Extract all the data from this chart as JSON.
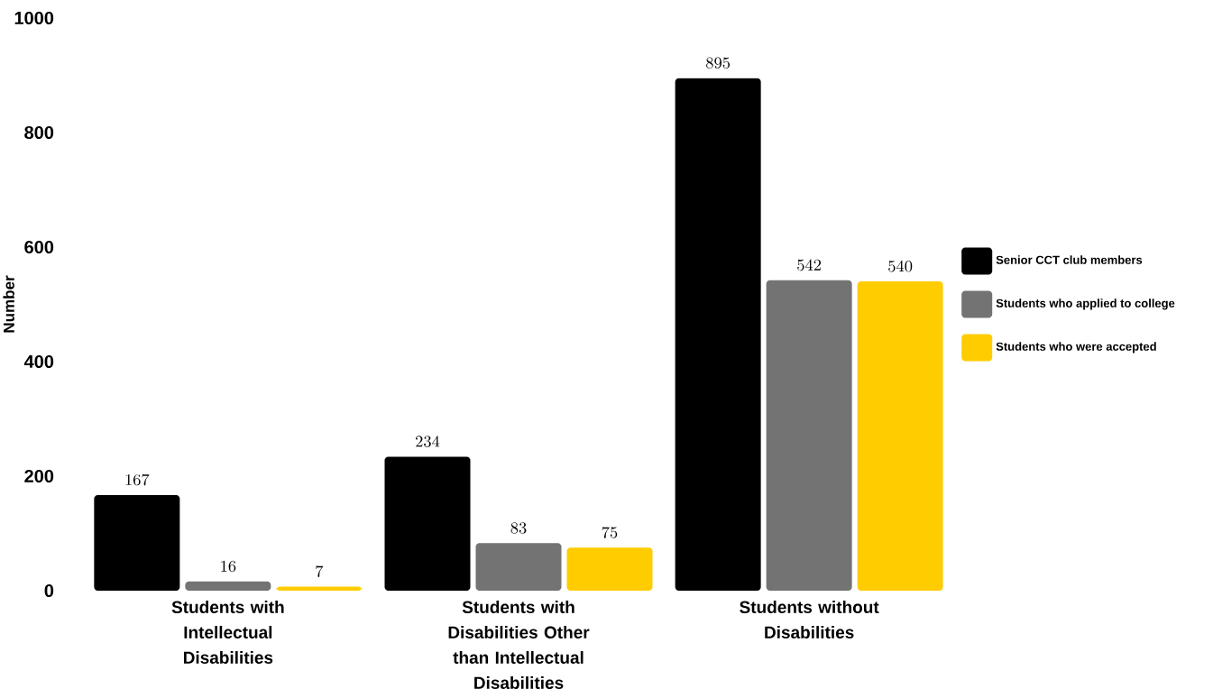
{
  "chart_data": {
    "type": "bar",
    "ylabel": "Number",
    "categories": [
      "Students with Intellectual Disabilities",
      "Students with Disabilities Other than Intellectual Disabilities",
      "Students without Disabilities"
    ],
    "series": [
      {
        "name": "Senior CCT club members",
        "color": "#000000",
        "values": [
          167,
          234,
          895
        ]
      },
      {
        "name": "Students who applied to college",
        "color": "#737373",
        "values": [
          16,
          83,
          542
        ]
      },
      {
        "name": "Students who were accepted",
        "color": "#ffcc00",
        "values": [
          7,
          75,
          540
        ]
      }
    ],
    "ylim": [
      0,
      1000
    ],
    "yticks": [
      0,
      200,
      400,
      600,
      800,
      1000
    ],
    "data_labels": true,
    "legend": "right",
    "grid": false
  }
}
